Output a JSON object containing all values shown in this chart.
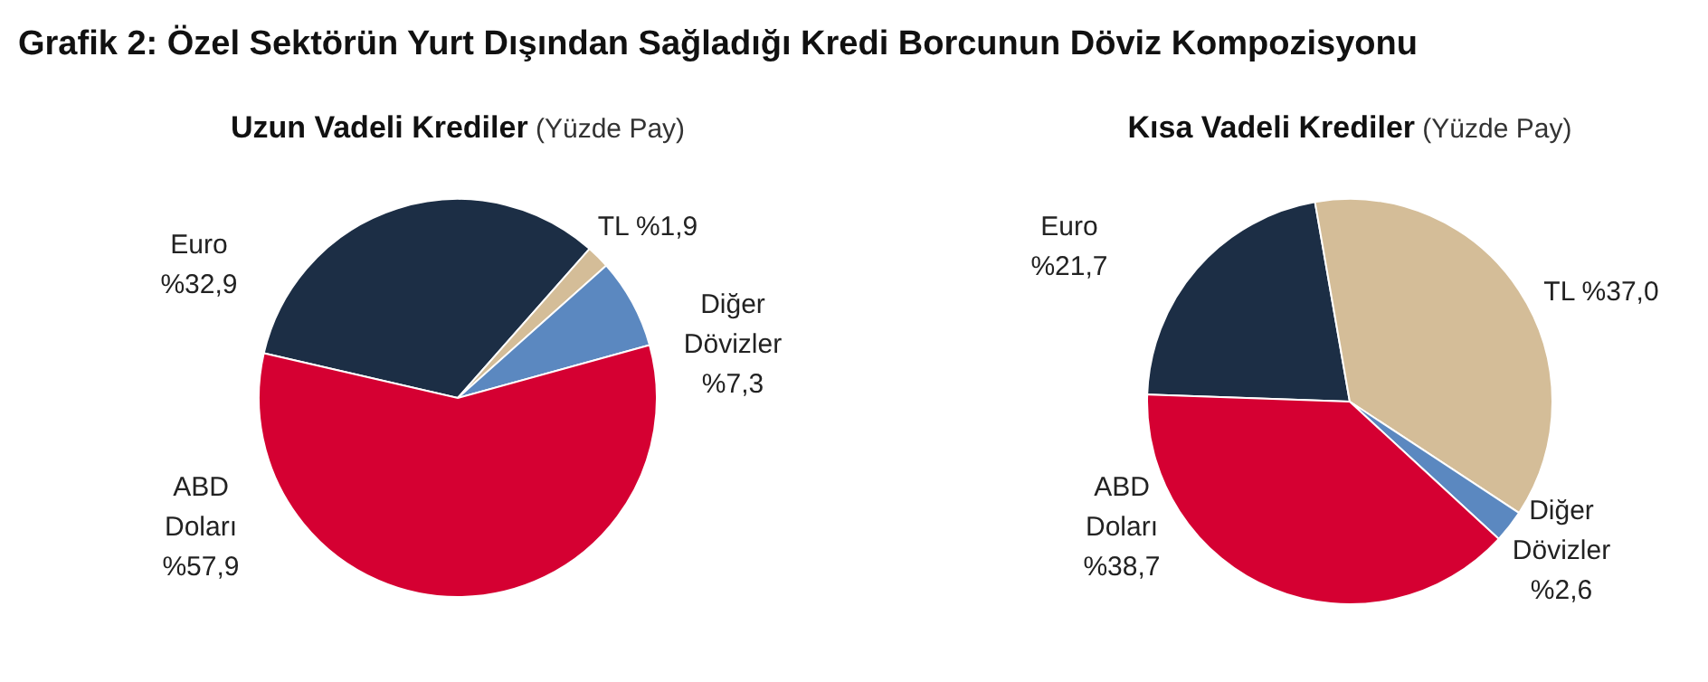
{
  "chart_data": [
    {
      "type": "pie",
      "title": "Uzun Vadeli Krediler",
      "subtitle": "(Yüzde Pay)",
      "annotations": [
        "Grafik 2: Özel Sektörün Yurt Dışından Sağladığı Kredi Borcunun Döviz Kompozisyonu"
      ],
      "categories": [
        "Euro",
        "TL",
        "Diğer Dövizler",
        "ABD Doları"
      ],
      "values": [
        32.9,
        1.9,
        7.3,
        57.9
      ],
      "value_labels": [
        "%32,9",
        "%1,9",
        "%7,3",
        "%57,9"
      ],
      "colors": [
        "#1c2e45",
        "#d4bd98",
        "#5b88c0",
        "#d50032"
      ]
    },
    {
      "type": "pie",
      "title": "Kısa Vadeli Krediler",
      "subtitle": "(Yüzde Pay)",
      "categories": [
        "Euro",
        "TL",
        "Diğer Dövizler",
        "ABD Doları"
      ],
      "values": [
        21.7,
        37.0,
        2.6,
        38.7
      ],
      "value_labels": [
        "%21,7",
        "%37,0",
        "%2,6",
        "%38,7"
      ],
      "colors": [
        "#1c2e45",
        "#d4bd98",
        "#5b88c0",
        "#d50032"
      ]
    }
  ]
}
